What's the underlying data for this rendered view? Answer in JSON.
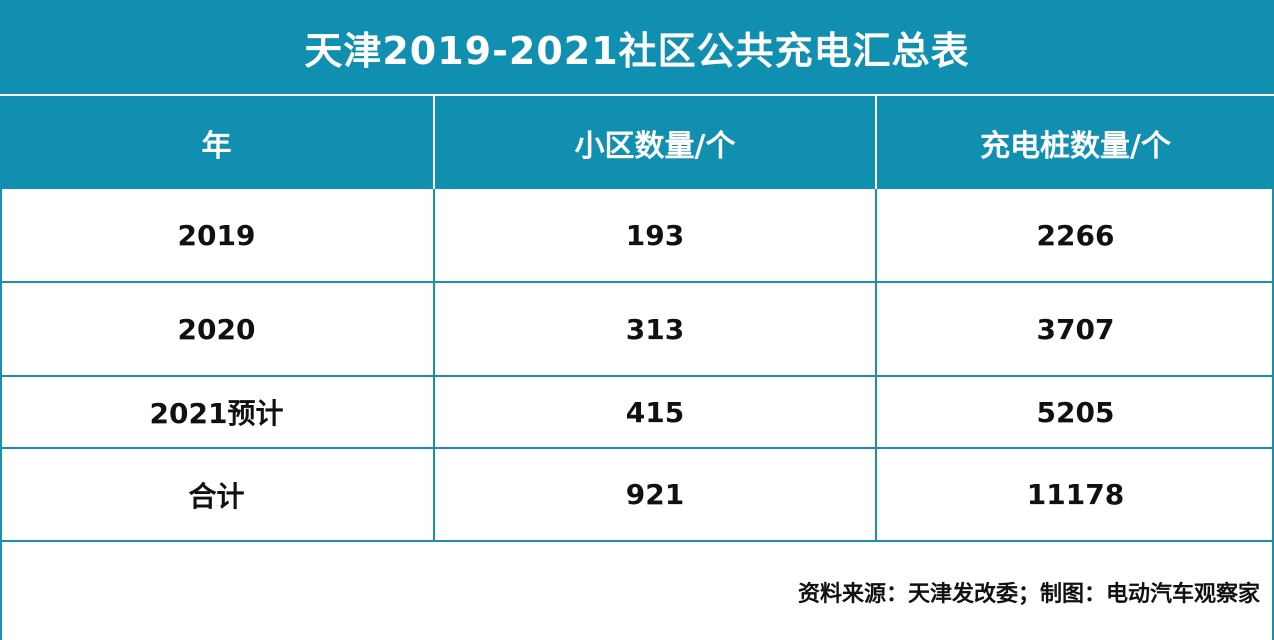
{
  "title": "天津2019-2021社区公共充电汇总表",
  "chart_data": {
    "type": "table",
    "title": "天津2019-2021社区公共充电汇总表",
    "columns": [
      "年",
      "小区数量/个",
      "充电桩数量/个"
    ],
    "rows": [
      [
        "2019",
        "193",
        "2266"
      ],
      [
        "2020",
        "313",
        "3707"
      ],
      [
        "2021预计",
        "415",
        "5205"
      ],
      [
        "合计",
        "921",
        "11178"
      ]
    ]
  },
  "footer": {
    "source": "资料来源：天津发改委；制图：电动汽车观察家"
  },
  "colors": {
    "header_bg": "#118fb0",
    "border": "#1b8fb0"
  }
}
